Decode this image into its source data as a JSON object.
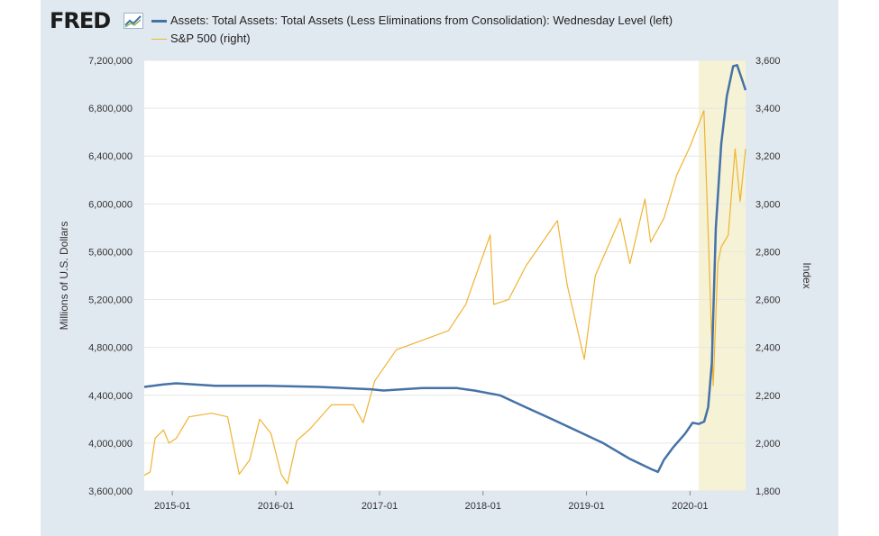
{
  "logo": {
    "text": "FRED"
  },
  "colors": {
    "left_series": "#4572a7",
    "right_series": "#f0b331",
    "recession": "#f5f2d6",
    "frame": "#e1e9f0"
  },
  "chart_data": {
    "type": "line",
    "title": "",
    "xlabel": "",
    "ylabel_left": "Millions of U.S. Dollars",
    "ylabel_right": "Index",
    "x_tick_labels": [
      "2015-01",
      "2016-01",
      "2017-01",
      "2018-01",
      "2019-01",
      "2020-01"
    ],
    "y_left_ticks": [
      "3,600,000",
      "4,000,000",
      "4,400,000",
      "4,800,000",
      "5,200,000",
      "5,600,000",
      "6,000,000",
      "6,400,000",
      "6,800,000",
      "7,200,000"
    ],
    "y_right_ticks": [
      "1,800",
      "2,000",
      "2,200",
      "2,400",
      "2,600",
      "2,800",
      "3,000",
      "3,200",
      "3,400",
      "3,600"
    ],
    "xlim": [
      "2014-09-24",
      "2020-07-15"
    ],
    "ylim_left": [
      3600000,
      7200000
    ],
    "ylim_right": [
      1800,
      3600
    ],
    "grid": "horizontal",
    "shaded_period": [
      "2020-02-01",
      "2020-07-15"
    ],
    "legend_position": "top-left",
    "series": [
      {
        "name": "Assets: Total Assets: Total Assets (Less Eliminations from Consolidation): Wednesday Level (left)",
        "axis": "left",
        "points": [
          [
            "2014-09-24",
            4470000
          ],
          [
            "2014-12-01",
            4490000
          ],
          [
            "2015-01-15",
            4500000
          ],
          [
            "2015-06-01",
            4480000
          ],
          [
            "2015-12-01",
            4480000
          ],
          [
            "2016-06-01",
            4470000
          ],
          [
            "2016-12-01",
            4450000
          ],
          [
            "2017-01-15",
            4440000
          ],
          [
            "2017-06-01",
            4460000
          ],
          [
            "2017-10-01",
            4460000
          ],
          [
            "2017-12-01",
            4440000
          ],
          [
            "2018-03-01",
            4400000
          ],
          [
            "2018-06-01",
            4300000
          ],
          [
            "2018-09-01",
            4200000
          ],
          [
            "2018-12-01",
            4100000
          ],
          [
            "2019-03-01",
            4000000
          ],
          [
            "2019-06-01",
            3870000
          ],
          [
            "2019-08-20",
            3780000
          ],
          [
            "2019-09-10",
            3760000
          ],
          [
            "2019-10-01",
            3860000
          ],
          [
            "2019-11-01",
            3960000
          ],
          [
            "2019-12-15",
            4080000
          ],
          [
            "2020-01-10",
            4170000
          ],
          [
            "2020-02-01",
            4160000
          ],
          [
            "2020-02-20",
            4180000
          ],
          [
            "2020-03-05",
            4300000
          ],
          [
            "2020-03-18",
            4670000
          ],
          [
            "2020-04-01",
            5800000
          ],
          [
            "2020-04-20",
            6500000
          ],
          [
            "2020-05-10",
            6900000
          ],
          [
            "2020-06-01",
            7150000
          ],
          [
            "2020-06-15",
            7160000
          ],
          [
            "2020-07-01",
            7050000
          ],
          [
            "2020-07-15",
            6950000
          ]
        ]
      },
      {
        "name": "S&P 500 (right)",
        "axis": "right",
        "points": [
          [
            "2014-09-24",
            1865
          ],
          [
            "2014-10-15",
            1880
          ],
          [
            "2014-11-01",
            2020
          ],
          [
            "2014-12-01",
            2055
          ],
          [
            "2014-12-20",
            2000
          ],
          [
            "2015-01-15",
            2020
          ],
          [
            "2015-03-01",
            2110
          ],
          [
            "2015-05-20",
            2125
          ],
          [
            "2015-07-15",
            2110
          ],
          [
            "2015-08-25",
            1870
          ],
          [
            "2015-10-01",
            1930
          ],
          [
            "2015-11-05",
            2100
          ],
          [
            "2015-12-15",
            2040
          ],
          [
            "2016-01-20",
            1870
          ],
          [
            "2016-02-11",
            1830
          ],
          [
            "2016-03-15",
            2010
          ],
          [
            "2016-05-01",
            2060
          ],
          [
            "2016-07-15",
            2160
          ],
          [
            "2016-10-01",
            2160
          ],
          [
            "2016-11-04",
            2085
          ],
          [
            "2016-12-15",
            2260
          ],
          [
            "2017-03-01",
            2390
          ],
          [
            "2017-06-01",
            2430
          ],
          [
            "2017-09-01",
            2470
          ],
          [
            "2017-11-01",
            2580
          ],
          [
            "2018-01-26",
            2870
          ],
          [
            "2018-02-08",
            2580
          ],
          [
            "2018-04-01",
            2600
          ],
          [
            "2018-06-01",
            2740
          ],
          [
            "2018-09-20",
            2930
          ],
          [
            "2018-10-25",
            2660
          ],
          [
            "2018-12-24",
            2350
          ],
          [
            "2019-02-01",
            2700
          ],
          [
            "2019-04-30",
            2940
          ],
          [
            "2019-06-03",
            2750
          ],
          [
            "2019-07-26",
            3020
          ],
          [
            "2019-08-15",
            2840
          ],
          [
            "2019-10-01",
            2940
          ],
          [
            "2019-11-15",
            3120
          ],
          [
            "2020-01-01",
            3240
          ],
          [
            "2020-02-19",
            3390
          ],
          [
            "2020-03-09",
            2750
          ],
          [
            "2020-03-23",
            2240
          ],
          [
            "2020-04-08",
            2750
          ],
          [
            "2020-04-20",
            2820
          ],
          [
            "2020-05-15",
            2870
          ],
          [
            "2020-06-08",
            3230
          ],
          [
            "2020-06-26",
            3010
          ],
          [
            "2020-07-15",
            3230
          ]
        ]
      }
    ]
  }
}
